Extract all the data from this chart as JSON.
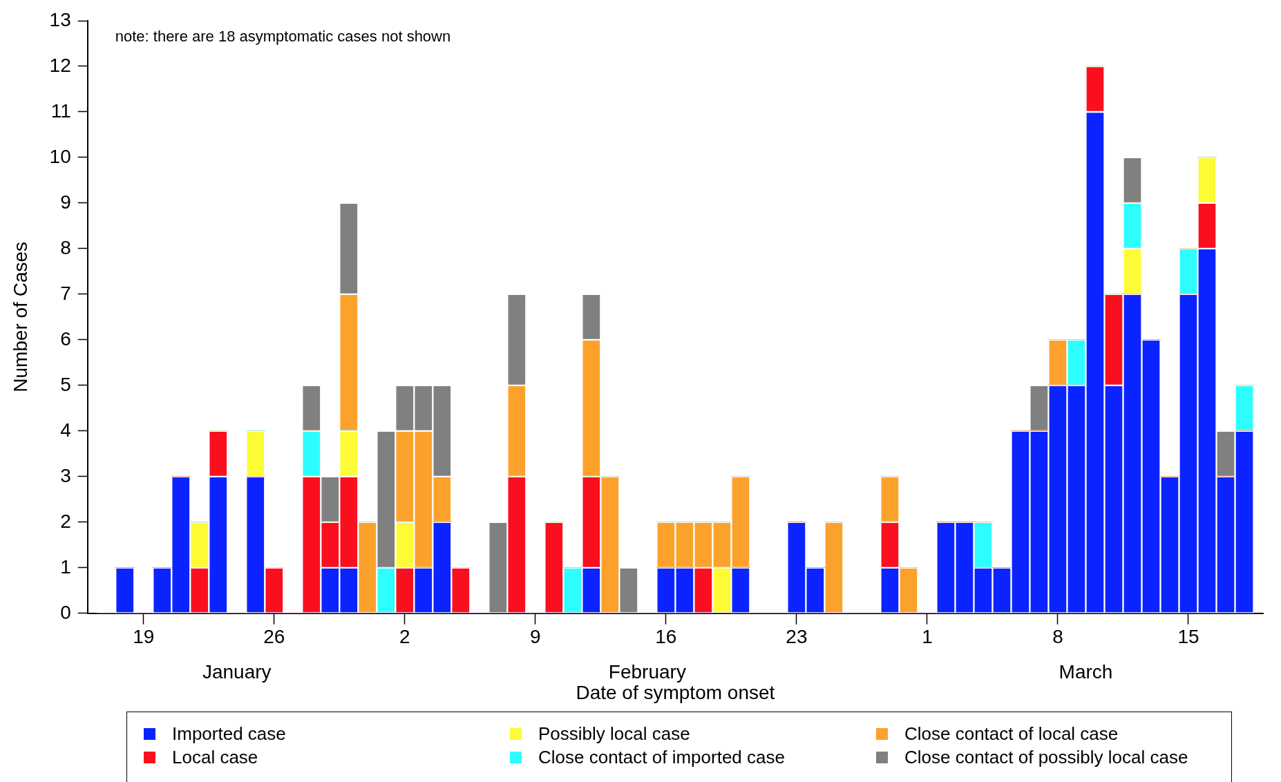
{
  "chart_data": {
    "type": "bar",
    "stacked": true,
    "xlabel": "Date of symptom onset",
    "ylabel": "Number of Cases",
    "x": [
      "--01-17",
      "--01-18",
      "--01-19",
      "--01-20",
      "--01-21",
      "--01-22",
      "--01-23",
      "--01-24",
      "--01-25",
      "--01-26",
      "--01-27",
      "--01-28",
      "--01-29",
      "--01-30",
      "--01-31",
      "--02-01",
      "--02-02",
      "--02-03",
      "--02-04",
      "--02-05",
      "--02-06",
      "--02-07",
      "--02-08",
      "--02-09",
      "--02-10",
      "--02-11",
      "--02-12",
      "--02-13",
      "--02-14",
      "--02-15",
      "--02-16",
      "--02-17",
      "--02-18",
      "--02-19",
      "--02-20",
      "--02-21",
      "--02-22",
      "--02-23",
      "--02-24",
      "--02-25",
      "--02-26",
      "--02-27",
      "--02-28",
      "--02-29",
      "--03-01",
      "--03-02",
      "--03-03",
      "--03-04",
      "--03-05",
      "--03-06",
      "--03-07",
      "--03-08",
      "--03-09",
      "--03-10",
      "--03-11",
      "--03-12",
      "--03-13",
      "--03-14",
      "--03-15",
      "--03-16",
      "--03-17",
      "--03-18"
    ],
    "series": [
      {
        "name": "Imported case",
        "color": "#0b24ff",
        "values": [
          0,
          1,
          0,
          1,
          3,
          0,
          3,
          0,
          3,
          0,
          0,
          0,
          1,
          1,
          0,
          0,
          0,
          1,
          2,
          0,
          0,
          0,
          0,
          0,
          0,
          0,
          1,
          0,
          0,
          0,
          1,
          1,
          0,
          0,
          1,
          0,
          0,
          2,
          1,
          0,
          0,
          0,
          1,
          0,
          0,
          2,
          2,
          1,
          1,
          4,
          4,
          5,
          5,
          11,
          5,
          7,
          6,
          3,
          7,
          8,
          3,
          4
        ]
      },
      {
        "name": "Local case",
        "color": "#fa0f1f",
        "values": [
          0,
          0,
          0,
          0,
          0,
          1,
          1,
          0,
          0,
          1,
          0,
          3,
          1,
          2,
          0,
          0,
          1,
          0,
          0,
          1,
          0,
          0,
          3,
          0,
          2,
          0,
          2,
          0,
          0,
          0,
          0,
          0,
          1,
          0,
          0,
          0,
          0,
          0,
          0,
          0,
          0,
          0,
          1,
          0,
          0,
          0,
          0,
          0,
          0,
          0,
          0,
          0,
          0,
          1,
          2,
          0,
          0,
          0,
          0,
          1,
          0,
          0
        ]
      },
      {
        "name": "Possibly local case",
        "color": "#fdfb36",
        "values": [
          0,
          0,
          0,
          0,
          0,
          1,
          0,
          0,
          1,
          0,
          0,
          0,
          0,
          1,
          0,
          0,
          1,
          0,
          0,
          0,
          0,
          0,
          0,
          0,
          0,
          0,
          0,
          0,
          0,
          0,
          0,
          0,
          0,
          1,
          0,
          0,
          0,
          0,
          0,
          0,
          0,
          0,
          0,
          0,
          0,
          0,
          0,
          0,
          0,
          0,
          0,
          0,
          0,
          0,
          0,
          1,
          0,
          0,
          0,
          1,
          0,
          0
        ]
      },
      {
        "name": "Close contact of imported case",
        "color": "#2efdfd",
        "values": [
          0,
          0,
          0,
          0,
          0,
          0,
          0,
          0,
          0,
          0,
          0,
          1,
          0,
          0,
          0,
          1,
          0,
          0,
          0,
          0,
          0,
          0,
          0,
          0,
          0,
          1,
          0,
          0,
          0,
          0,
          0,
          0,
          0,
          0,
          0,
          0,
          0,
          0,
          0,
          0,
          0,
          0,
          0,
          0,
          0,
          0,
          0,
          1,
          0,
          0,
          0,
          0,
          1,
          0,
          0,
          1,
          0,
          0,
          1,
          0,
          0,
          1
        ]
      },
      {
        "name": "Close contact of local case",
        "color": "#fca22c",
        "values": [
          0,
          0,
          0,
          0,
          0,
          0,
          0,
          0,
          0,
          0,
          0,
          0,
          0,
          3,
          2,
          0,
          2,
          3,
          1,
          0,
          0,
          0,
          2,
          0,
          0,
          0,
          3,
          3,
          0,
          0,
          1,
          1,
          1,
          1,
          2,
          0,
          0,
          0,
          0,
          2,
          0,
          0,
          1,
          1,
          0,
          0,
          0,
          0,
          0,
          0,
          0,
          1,
          0,
          0,
          0,
          0,
          0,
          0,
          0,
          0,
          0,
          0
        ]
      },
      {
        "name": "Close contact of possibly local case",
        "color": "#808080",
        "values": [
          0,
          0,
          0,
          0,
          0,
          0,
          0,
          0,
          0,
          0,
          0,
          1,
          1,
          2,
          0,
          3,
          1,
          1,
          2,
          0,
          0,
          2,
          2,
          0,
          0,
          0,
          1,
          0,
          1,
          0,
          0,
          0,
          0,
          0,
          0,
          0,
          0,
          0,
          0,
          0,
          0,
          0,
          0,
          0,
          0,
          0,
          0,
          0,
          0,
          0,
          1,
          0,
          0,
          0,
          0,
          1,
          0,
          0,
          0,
          0,
          1,
          0
        ]
      }
    ],
    "xlim": [
      "--01-16",
      "--03-19"
    ],
    "xticks": [
      {
        "value": "--01-19",
        "label": "19"
      },
      {
        "value": "--01-26",
        "label": "26"
      },
      {
        "value": "--02-02",
        "label": "2"
      },
      {
        "value": "--02-09",
        "label": "9"
      },
      {
        "value": "--02-16",
        "label": "16"
      },
      {
        "value": "--02-23",
        "label": "23"
      },
      {
        "value": "--03-01",
        "label": "1"
      },
      {
        "value": "--03-08",
        "label": "8"
      },
      {
        "value": "--03-15",
        "label": "15"
      }
    ],
    "ylim": [
      0,
      13
    ],
    "yticks": [
      0,
      1,
      2,
      3,
      4,
      5,
      6,
      7,
      8,
      9,
      10,
      11,
      12,
      13
    ],
    "annotations": [
      "note: there are 18 asymptomatic cases not shown",
      "January",
      "February",
      "March"
    ],
    "legend": "bottom"
  }
}
